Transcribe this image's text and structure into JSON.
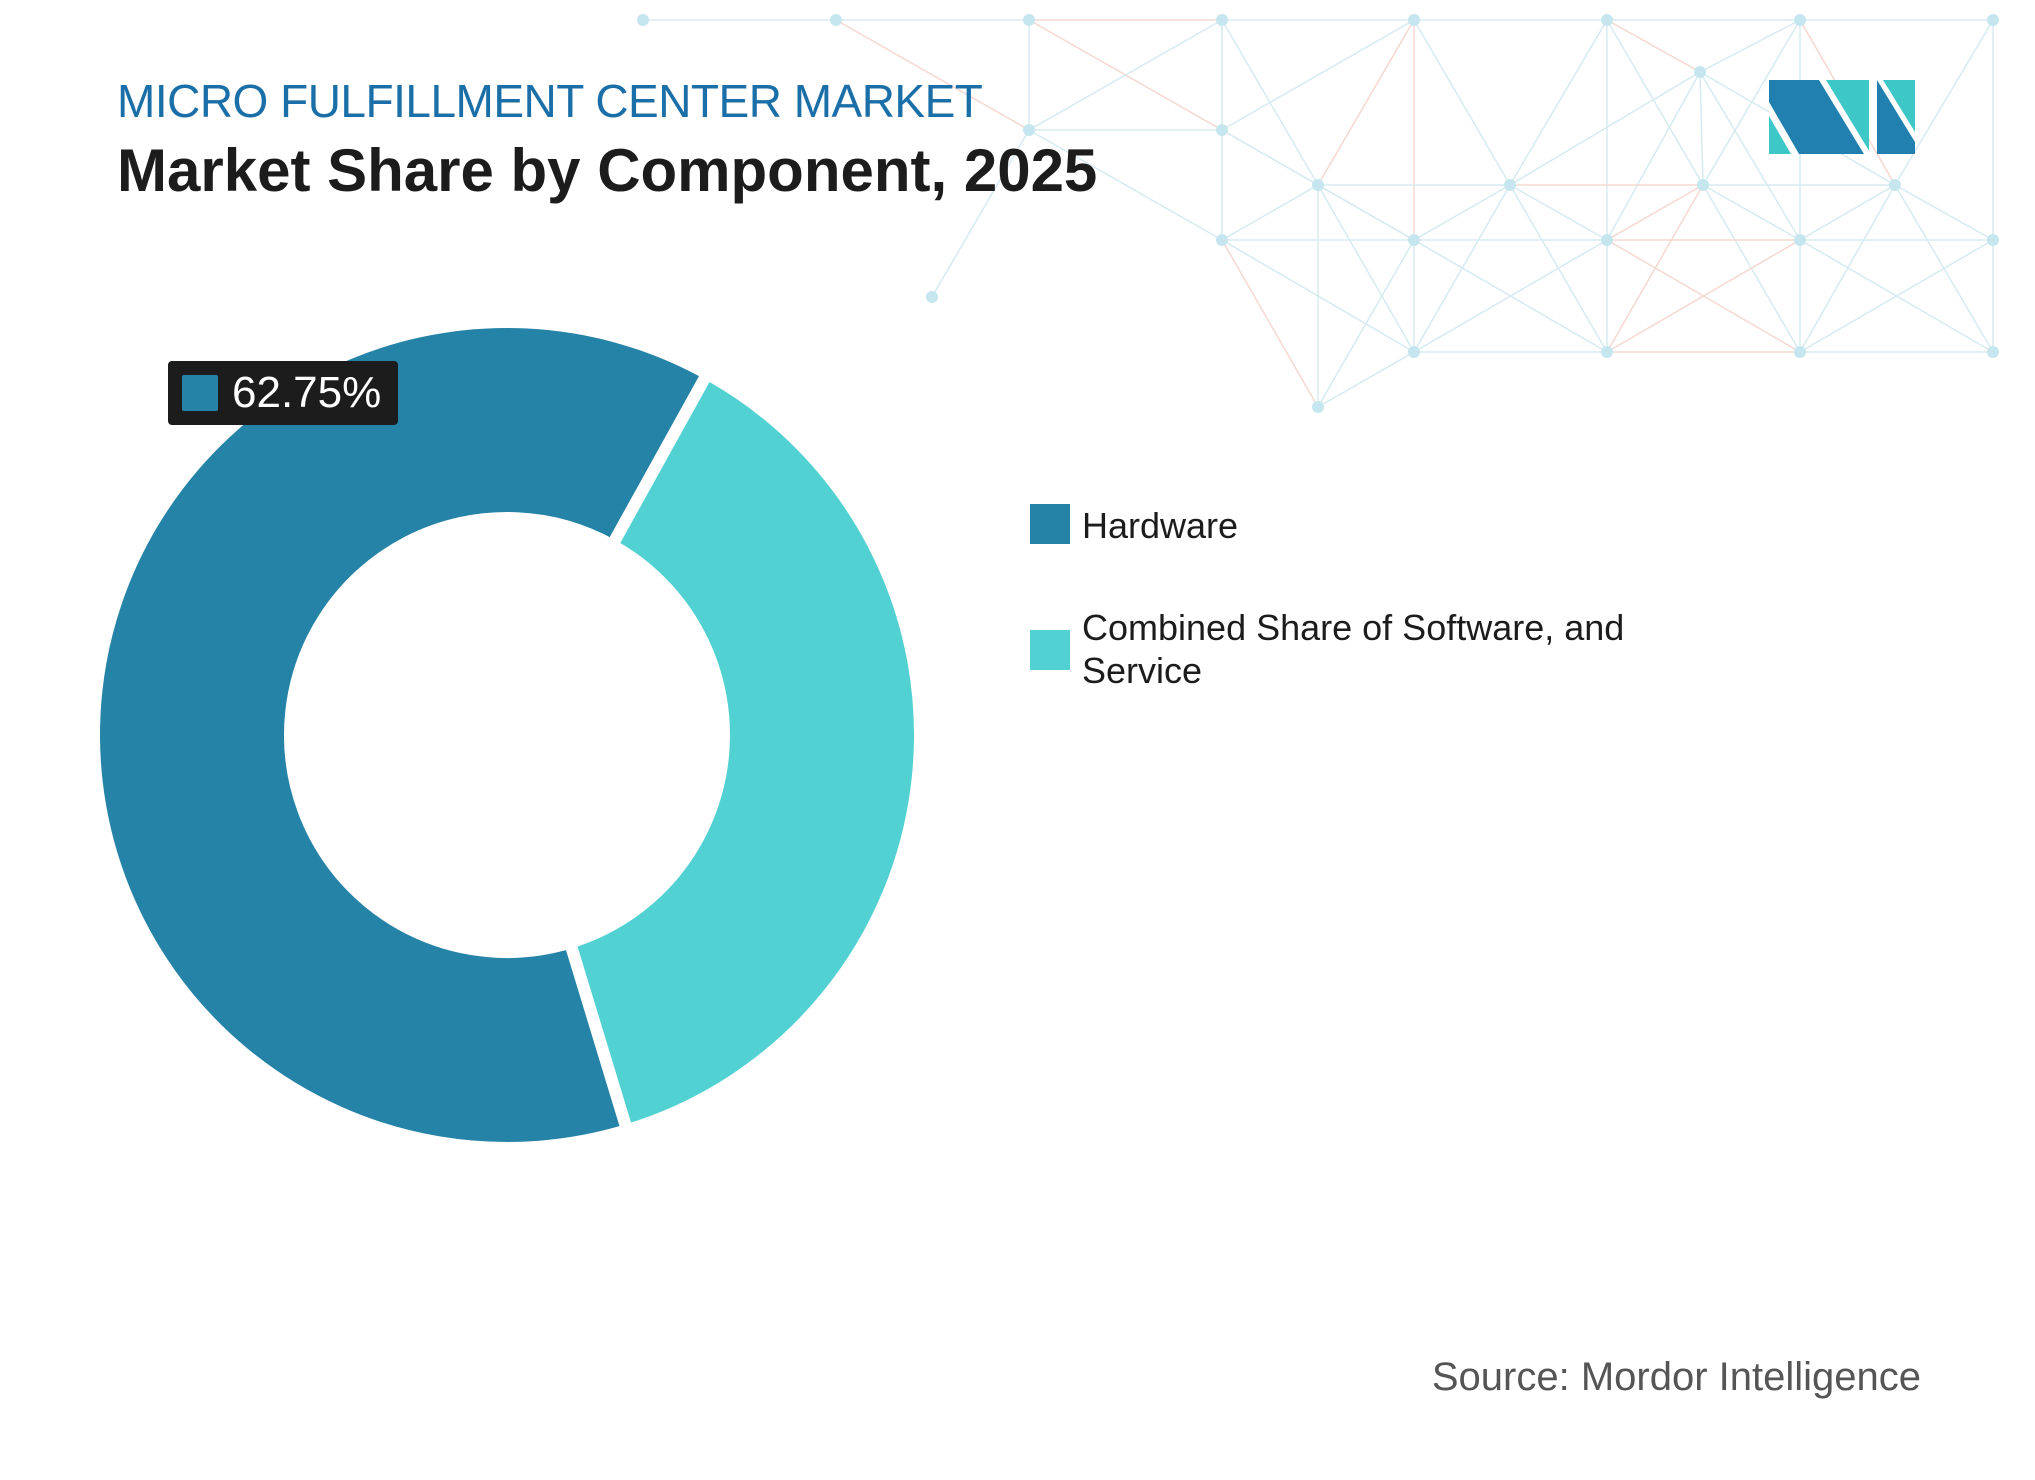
{
  "header": {
    "subtitle": "MICRO FULFILLMENT CENTER MARKET",
    "title": "Market Share by Component, 2025"
  },
  "logo": {
    "name": "mordor-intelligence-logo",
    "text": "MI",
    "colors": [
      "#2180b0",
      "#3ec7c7"
    ]
  },
  "chart_data": {
    "type": "pie",
    "variant": "donut",
    "categories": [
      "Hardware",
      "Combined Share of Software, and Service"
    ],
    "values": [
      62.75,
      37.25
    ],
    "colors": [
      "#2683a8",
      "#52d1d3"
    ],
    "data_labels": [
      {
        "category": "Hardware",
        "text": "62.75%"
      }
    ],
    "legend": "right"
  },
  "source": "Source: Mordor Intelligence"
}
